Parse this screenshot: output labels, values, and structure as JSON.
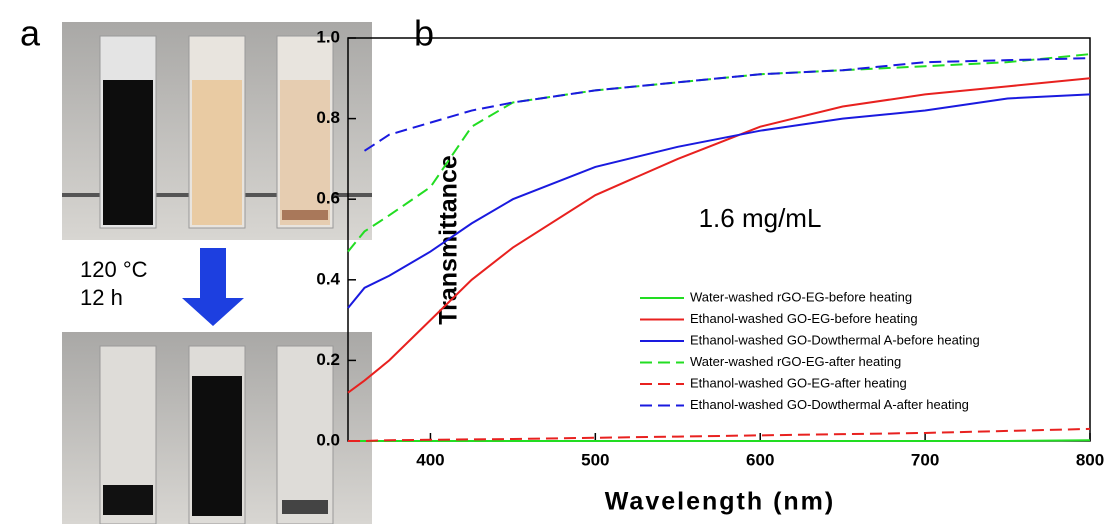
{
  "panel_a": {
    "label": "a",
    "condition": [
      "120 °C",
      "12 h"
    ]
  },
  "chart_data": {
    "type": "line",
    "panel_label": "b",
    "x_label": "Wavelength (nm)",
    "y_label": "Transmittance",
    "annotation": "1.6 mg/mL",
    "x": [
      350,
      360,
      375,
      400,
      425,
      450,
      500,
      550,
      600,
      650,
      700,
      750,
      800
    ],
    "series": [
      {
        "name": "Water-washed rGO-EG-before heating",
        "color": "#22dd22",
        "style": "solid",
        "values": [
          0,
          0,
          0,
          0,
          0,
          0,
          0,
          0,
          0,
          0,
          0,
          0,
          0.002
        ]
      },
      {
        "name": "Ethanol-washed GO-EG-before heating",
        "color": "#e8211f",
        "style": "solid",
        "values": [
          0.12,
          0.15,
          0.2,
          0.3,
          0.4,
          0.48,
          0.61,
          0.7,
          0.78,
          0.83,
          0.86,
          0.88,
          0.9
        ]
      },
      {
        "name": "Ethanol-washed GO-Dowthermal A-before heating",
        "color": "#1a1adf",
        "style": "solid",
        "values": [
          0.33,
          0.38,
          0.41,
          0.47,
          0.54,
          0.6,
          0.68,
          0.73,
          0.77,
          0.8,
          0.82,
          0.85,
          0.86
        ]
      },
      {
        "name": "Water-washed rGO-EG-after heating",
        "color": "#22dd22",
        "style": "dashed",
        "values": [
          0.47,
          0.52,
          0.56,
          0.63,
          0.78,
          0.84,
          0.87,
          0.89,
          0.91,
          0.92,
          0.93,
          0.94,
          0.96
        ]
      },
      {
        "name": "Ethanol-washed GO-EG-after heating",
        "color": "#e8211f",
        "style": "dashed",
        "values": [
          0,
          0,
          0.002,
          0.003,
          0.004,
          0.005,
          0.008,
          0.011,
          0.014,
          0.017,
          0.02,
          0.025,
          0.03
        ]
      },
      {
        "name": "Ethanol-washed GO-Dowthermal A-after heating",
        "color": "#1a1adf",
        "style": "dashed",
        "values": [
          null,
          0.72,
          0.76,
          0.79,
          0.82,
          0.84,
          0.87,
          0.89,
          0.91,
          0.92,
          0.94,
          0.945,
          0.95
        ]
      }
    ],
    "xlim": [
      350,
      800
    ],
    "ylim": [
      0,
      1
    ],
    "xticks": [
      400,
      500,
      600,
      700,
      800
    ],
    "yticks": [
      {
        "value": 0,
        "label": "0.0"
      },
      0.2,
      0.4,
      0.6,
      0.8,
      {
        "value": 1,
        "label": "1.0"
      }
    ],
    "legend": "lower right"
  }
}
